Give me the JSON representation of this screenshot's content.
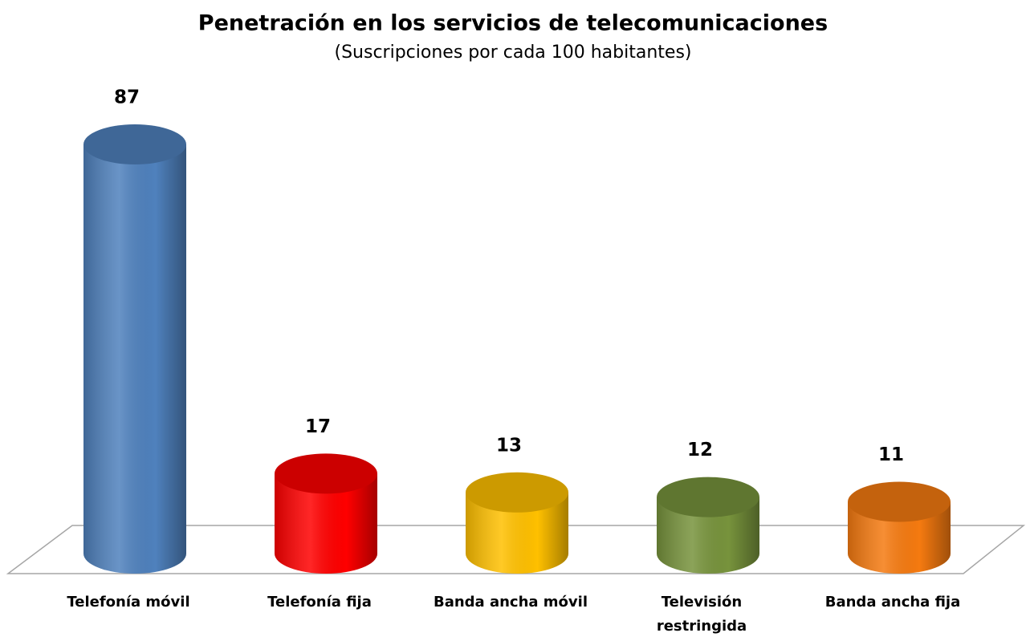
{
  "chart_data": {
    "type": "bar",
    "title": "Penetración en los servicios de telecomunicaciones",
    "subtitle": "(Suscripciones por cada 100 habitantes)",
    "categories": [
      "Telefonía móvil",
      "Telefonía fija",
      "Banda ancha móvil",
      "Televisión\nrestringida",
      "Banda ancha fija"
    ],
    "values": [
      87,
      17,
      13,
      12,
      11
    ],
    "colors": [
      "#4f81bd",
      "#ff0000",
      "#ffc000",
      "#77933c",
      "#f57a10"
    ]
  }
}
